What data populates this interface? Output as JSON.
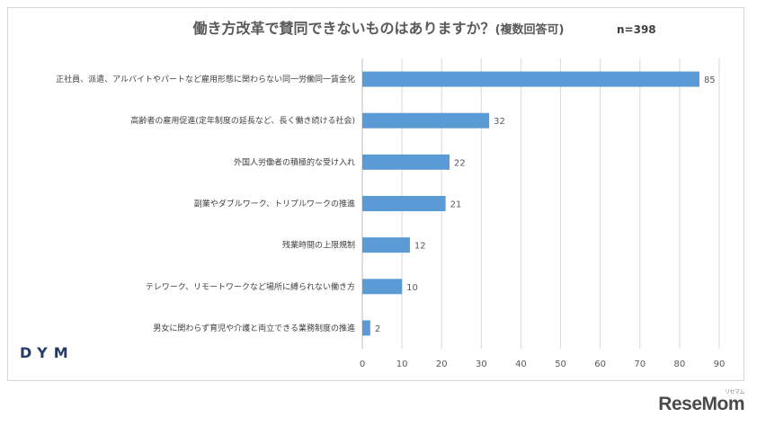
{
  "title_main": "働き方改革で賛同できないものはありますか？",
  "title_sub": "(複数回答可)",
  "sample_size": "n=398",
  "brand_logo": "DYM",
  "watermark": "ReseMom",
  "watermark_ruby": "リセマム",
  "colors": {
    "bar": "#5b9bd5",
    "grid": "#d9d9d9",
    "text": "#595959"
  },
  "chart_data": {
    "type": "bar",
    "orientation": "horizontal",
    "title": "働き方改革で賛同できないものはありますか？(複数回答可)",
    "categories": [
      "正社員、派遣、アルバイトやパートなど雇用形態に関わらない同一労働同一賃金化",
      "高齢者の雇用促進(定年制度の延長など、長く働き続ける社会)",
      "外国人労働者の積極的な受け入れ",
      "副業やダブルワーク、トリプルワークの推進",
      "残業時間の上限規制",
      "テレワーク、リモートワークなど場所に縛られない働き方",
      "男女に関わらず育児や介護と両立できる業務制度の推進"
    ],
    "values": [
      85,
      32,
      22,
      21,
      12,
      10,
      2
    ],
    "xlim": [
      0,
      90
    ],
    "xticks": [
      0,
      10,
      20,
      30,
      40,
      50,
      60,
      70,
      80,
      90
    ],
    "grid": true,
    "legend": "none"
  }
}
